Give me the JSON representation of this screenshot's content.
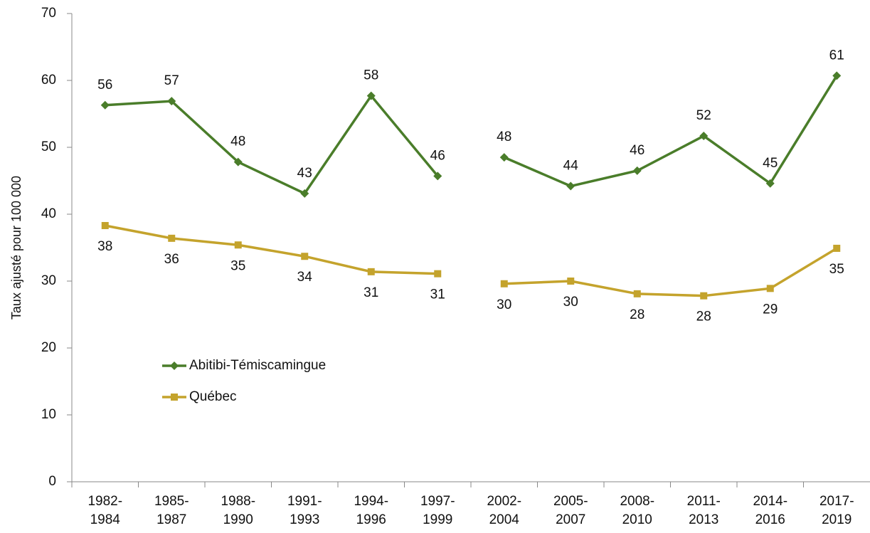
{
  "chart_data": {
    "type": "line",
    "ylabel": "Taux ajusté pour 100 000",
    "categories": [
      [
        "1982-",
        "1984"
      ],
      [
        "1985-",
        "1987"
      ],
      [
        "1988-",
        "1990"
      ],
      [
        "1991-",
        "1993"
      ],
      [
        "1994-",
        "1996"
      ],
      [
        "1997-",
        "1999"
      ],
      [
        "2002-",
        "2004"
      ],
      [
        "2005-",
        "2007"
      ],
      [
        "2008-",
        "2010"
      ],
      [
        "2011-",
        "2013"
      ],
      [
        "2014-",
        "2016"
      ],
      [
        "2017-",
        "2019"
      ]
    ],
    "series": [
      {
        "name": "Abitibi-Témiscamingue",
        "color": "#4a7d2a",
        "marker": "diamond",
        "label_position": "above",
        "values": [
          56.3,
          56.9,
          47.8,
          43.1,
          57.7,
          45.7,
          48.5,
          44.2,
          46.5,
          51.7,
          44.6,
          60.7
        ],
        "value_labels": [
          "56",
          "57",
          "48",
          "43",
          "58",
          "46",
          "48",
          "44",
          "46",
          "52",
          "45",
          "61"
        ]
      },
      {
        "name": "Québec",
        "color": "#c4a32c",
        "marker": "square",
        "label_position": "below",
        "values": [
          38.3,
          36.4,
          35.4,
          33.7,
          31.4,
          31.1,
          29.6,
          30.0,
          28.1,
          27.8,
          28.9,
          34.9
        ],
        "value_labels": [
          "38",
          "36",
          "35",
          "34",
          "31",
          "31",
          "30",
          "30",
          "28",
          "28",
          "29",
          "35"
        ]
      }
    ],
    "line_break_after": 5,
    "ylim": [
      0,
      70
    ],
    "yticks": [
      0,
      10,
      20,
      30,
      40,
      50,
      60,
      70
    ],
    "grid": false,
    "legend": "lower left"
  }
}
